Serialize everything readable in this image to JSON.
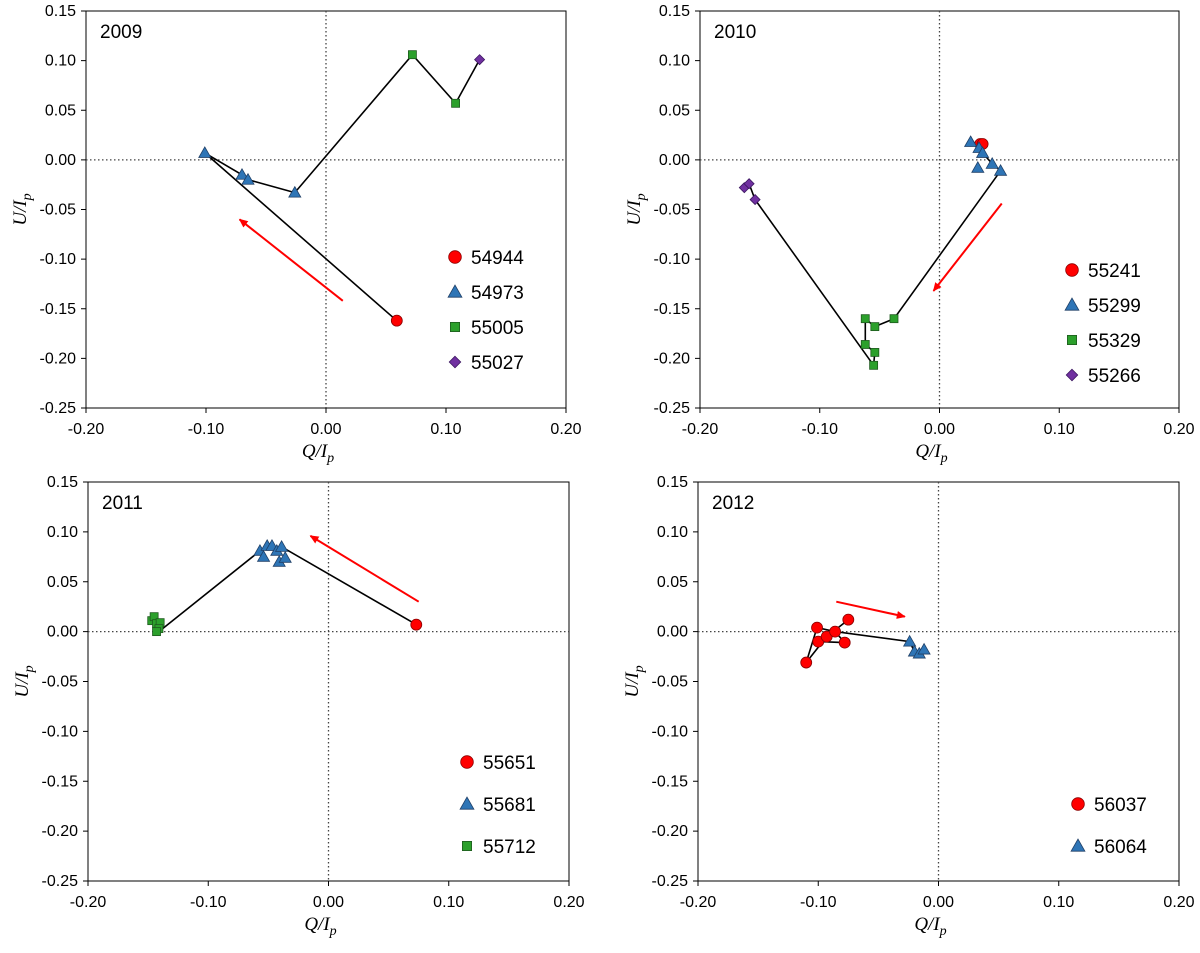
{
  "chart_data": [
    {
      "type": "scatter",
      "title": "2009",
      "xlabel": "Q/I",
      "xlabel_sub": "p",
      "ylabel": "U/I",
      "ylabel_sub": "p",
      "xlim": [
        -0.2,
        0.2
      ],
      "ylim": [
        -0.25,
        0.15
      ],
      "xticks": [
        -0.2,
        -0.1,
        0.0,
        0.1,
        0.2
      ],
      "xtick_labels": [
        "-0.20",
        "-0.10",
        "0.00",
        "0.10",
        "0.20"
      ],
      "yticks": [
        0.15,
        0.1,
        0.05,
        0.0,
        -0.05,
        -0.1,
        -0.15,
        -0.2,
        -0.25
      ],
      "ytick_labels": [
        "0.15",
        "0.10",
        "0.05",
        "0.00",
        "-0.05",
        "-0.10",
        "-0.15",
        "-0.20",
        "-0.25"
      ],
      "series": [
        {
          "name": "54944",
          "marker": "circle",
          "color": "#ff0000",
          "points": [
            [
              0.059,
              -0.162
            ]
          ]
        },
        {
          "name": "54973",
          "marker": "triangle",
          "color": "#2e75b6",
          "points": [
            [
              -0.101,
              0.007
            ],
            [
              -0.07,
              -0.015
            ],
            [
              -0.065,
              -0.02
            ],
            [
              -0.026,
              -0.033
            ]
          ]
        },
        {
          "name": "55005",
          "marker": "square",
          "color": "#2ca02c",
          "points": [
            [
              0.072,
              0.106
            ],
            [
              0.108,
              0.057
            ]
          ]
        },
        {
          "name": "55027",
          "marker": "diamond",
          "color": "#7030a0",
          "points": [
            [
              0.128,
              0.101
            ]
          ]
        }
      ],
      "path": [
        [
          0.059,
          -0.162
        ],
        [
          -0.101,
          0.007
        ],
        [
          -0.07,
          -0.015
        ],
        [
          -0.065,
          -0.02
        ],
        [
          -0.026,
          -0.033
        ],
        [
          0.072,
          0.106
        ],
        [
          0.108,
          0.057
        ],
        [
          0.128,
          0.101
        ]
      ],
      "arrow": {
        "from": [
          0.014,
          -0.142
        ],
        "to": [
          -0.072,
          -0.06
        ]
      },
      "legend_position": "lower-right"
    },
    {
      "type": "scatter",
      "title": "2010",
      "xlabel": "Q/I",
      "xlabel_sub": "p",
      "ylabel": "U/I",
      "ylabel_sub": "p",
      "xlim": [
        -0.2,
        0.2
      ],
      "ylim": [
        -0.25,
        0.15
      ],
      "xticks": [
        -0.2,
        -0.1,
        0.0,
        0.1,
        0.2
      ],
      "xtick_labels": [
        "-0.20",
        "-0.10",
        "0.00",
        "0.10",
        "0.20"
      ],
      "yticks": [
        0.15,
        0.1,
        0.05,
        0.0,
        -0.05,
        -0.1,
        -0.15,
        -0.2,
        -0.25
      ],
      "ytick_labels": [
        "0.15",
        "0.10",
        "0.05",
        "0.00",
        "-0.05",
        "-0.10",
        "-0.15",
        "-0.20",
        "-0.25"
      ],
      "series": [
        {
          "name": "55241",
          "marker": "circle",
          "color": "#ff0000",
          "points": [
            [
              0.034,
              0.016
            ],
            [
              0.036,
              0.016
            ]
          ]
        },
        {
          "name": "55299",
          "marker": "triangle",
          "color": "#2e75b6",
          "points": [
            [
              0.026,
              0.018
            ],
            [
              0.033,
              0.012
            ],
            [
              0.036,
              0.007
            ],
            [
              0.032,
              -0.008
            ],
            [
              0.044,
              -0.004
            ],
            [
              0.051,
              -0.011
            ]
          ]
        },
        {
          "name": "55329",
          "marker": "square",
          "color": "#2ca02c",
          "points": [
            [
              -0.038,
              -0.16
            ],
            [
              -0.054,
              -0.168
            ],
            [
              -0.062,
              -0.16
            ],
            [
              -0.062,
              -0.186
            ],
            [
              -0.054,
              -0.194
            ],
            [
              -0.055,
              -0.207
            ]
          ]
        },
        {
          "name": "55266",
          "marker": "diamond",
          "color": "#7030a0",
          "points": [
            [
              -0.163,
              -0.028
            ],
            [
              -0.159,
              -0.024
            ],
            [
              -0.154,
              -0.04
            ]
          ]
        }
      ],
      "path": [
        [
          0.034,
          0.016
        ],
        [
          0.026,
          0.018
        ],
        [
          0.033,
          0.012
        ],
        [
          0.036,
          0.007
        ],
        [
          0.044,
          -0.004
        ],
        [
          0.051,
          -0.011
        ],
        [
          -0.038,
          -0.16
        ],
        [
          -0.054,
          -0.168
        ],
        [
          -0.062,
          -0.16
        ],
        [
          -0.062,
          -0.186
        ],
        [
          -0.054,
          -0.194
        ],
        [
          -0.055,
          -0.207
        ],
        [
          -0.154,
          -0.04
        ],
        [
          -0.159,
          -0.024
        ],
        [
          -0.163,
          -0.028
        ]
      ],
      "arrow": {
        "from": [
          0.052,
          -0.044
        ],
        "to": [
          -0.005,
          -0.132
        ]
      },
      "legend_position": "lower-right"
    },
    {
      "type": "scatter",
      "title": "2011",
      "xlabel": "Q/I",
      "xlabel_sub": "p",
      "ylabel": "U/I",
      "ylabel_sub": "p",
      "xlim": [
        -0.2,
        0.2
      ],
      "ylim": [
        -0.25,
        0.15
      ],
      "xticks": [
        -0.2,
        -0.1,
        0.0,
        0.1,
        0.2
      ],
      "xtick_labels": [
        "-0.20",
        "-0.10",
        "0.00",
        "0.10",
        "0.20"
      ],
      "yticks": [
        0.15,
        0.1,
        0.05,
        0.0,
        -0.05,
        -0.1,
        -0.15,
        -0.2,
        -0.25
      ],
      "ytick_labels": [
        "0.15",
        "0.10",
        "0.05",
        "0.00",
        "-0.05",
        "-0.10",
        "-0.15",
        "-0.20",
        "-0.25"
      ],
      "series": [
        {
          "name": "55651",
          "marker": "circle",
          "color": "#ff0000",
          "points": [
            [
              0.073,
              0.007
            ]
          ]
        },
        {
          "name": "55681",
          "marker": "triangle",
          "color": "#2e75b6",
          "points": [
            [
              -0.057,
              0.081
            ],
            [
              -0.054,
              0.075
            ],
            [
              -0.051,
              0.086
            ],
            [
              -0.047,
              0.086
            ],
            [
              -0.043,
              0.081
            ],
            [
              -0.041,
              0.07
            ],
            [
              -0.039,
              0.085
            ],
            [
              -0.036,
              0.074
            ]
          ]
        },
        {
          "name": "55712",
          "marker": "square",
          "color": "#2ca02c",
          "points": [
            [
              -0.147,
              0.011
            ],
            [
              -0.145,
              0.015
            ],
            [
              -0.143,
              0.008
            ],
            [
              -0.14,
              0.009
            ],
            [
              -0.141,
              0.003
            ],
            [
              -0.143,
              0.0
            ]
          ]
        }
      ],
      "path": [
        [
          0.073,
          0.007
        ],
        [
          -0.039,
          0.085
        ],
        [
          -0.043,
          0.081
        ],
        [
          -0.047,
          0.086
        ],
        [
          -0.051,
          0.086
        ],
        [
          -0.057,
          0.081
        ],
        [
          -0.141,
          0.0
        ],
        [
          -0.143,
          0.008
        ],
        [
          -0.145,
          0.015
        ],
        [
          -0.147,
          0.011
        ]
      ],
      "arrow": {
        "from": [
          0.075,
          0.03
        ],
        "to": [
          -0.015,
          0.096
        ]
      },
      "legend_position": "lower-right"
    },
    {
      "type": "scatter",
      "title": "2012",
      "xlabel": "Q/I",
      "xlabel_sub": "p",
      "ylabel": "U/I",
      "ylabel_sub": "p",
      "xlim": [
        -0.2,
        0.2
      ],
      "ylim": [
        -0.25,
        0.15
      ],
      "xticks": [
        -0.2,
        -0.1,
        0.0,
        0.1,
        0.2
      ],
      "xtick_labels": [
        "-0.20",
        "-0.10",
        "0.00",
        "0.10",
        "0.20"
      ],
      "yticks": [
        0.15,
        0.1,
        0.05,
        0.0,
        -0.05,
        -0.1,
        -0.15,
        -0.2,
        -0.25
      ],
      "ytick_labels": [
        "0.15",
        "0.10",
        "0.05",
        "0.00",
        "-0.05",
        "-0.10",
        "-0.15",
        "-0.20",
        "-0.25"
      ],
      "series": [
        {
          "name": "56037",
          "marker": "circle",
          "color": "#ff0000",
          "points": [
            [
              -0.11,
              -0.031
            ],
            [
              -0.101,
              0.004
            ],
            [
              -0.1,
              -0.01
            ],
            [
              -0.093,
              -0.005
            ],
            [
              -0.086,
              0.0
            ],
            [
              -0.078,
              -0.011
            ],
            [
              -0.075,
              0.012
            ]
          ]
        },
        {
          "name": "56064",
          "marker": "triangle",
          "color": "#2e75b6",
          "points": [
            [
              -0.024,
              -0.01
            ],
            [
              -0.02,
              -0.02
            ],
            [
              -0.016,
              -0.022
            ],
            [
              -0.012,
              -0.018
            ]
          ]
        }
      ],
      "path": [
        [
          -0.075,
          0.012
        ],
        [
          -0.093,
          -0.005
        ],
        [
          -0.11,
          -0.031
        ],
        [
          -0.101,
          0.004
        ],
        [
          -0.086,
          0.0
        ],
        [
          -0.1,
          -0.01
        ],
        [
          -0.078,
          -0.011
        ],
        [
          -0.086,
          0.0
        ],
        [
          -0.024,
          -0.01
        ],
        [
          -0.02,
          -0.02
        ],
        [
          -0.016,
          -0.022
        ],
        [
          -0.012,
          -0.018
        ]
      ],
      "arrow": {
        "from": [
          -0.085,
          0.03
        ],
        "to": [
          -0.028,
          0.015
        ]
      },
      "legend_position": "lower-right"
    }
  ]
}
